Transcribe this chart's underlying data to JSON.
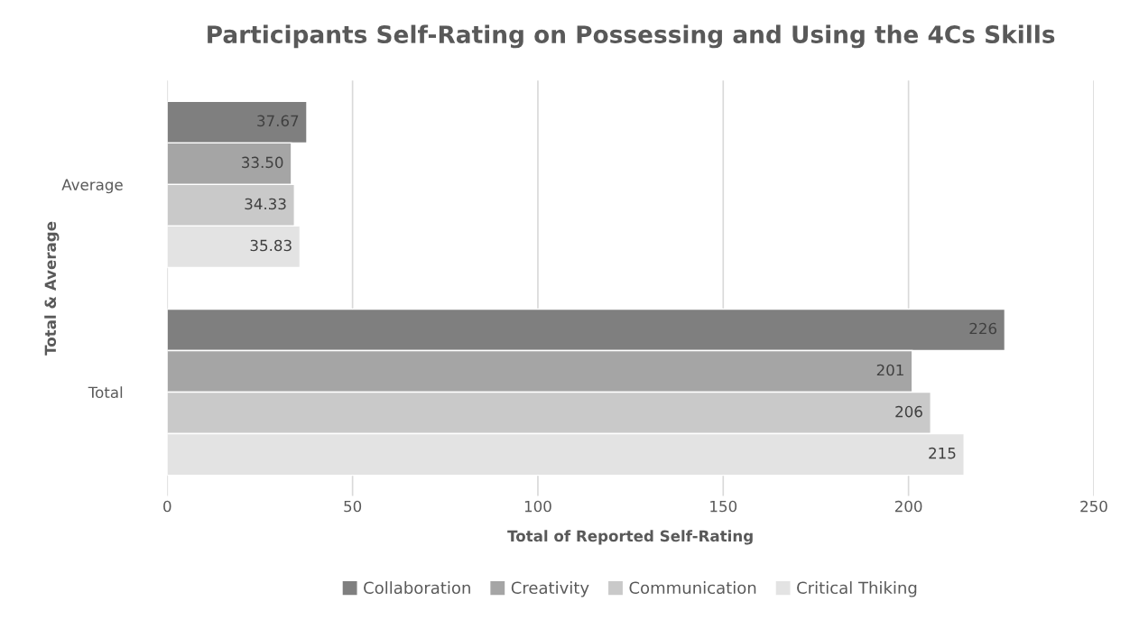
{
  "chart_data": {
    "type": "bar",
    "orientation": "horizontal",
    "title": "Participants Self-Rating on Possessing and Using the 4Cs Skills",
    "xlabel": "Total of Reported Self-Rating",
    "ylabel": "Total & Average",
    "categories": [
      "Average",
      "Total"
    ],
    "series": [
      {
        "name": "Collaboration",
        "color": "#7f7f7f",
        "values": [
          37.67,
          226
        ],
        "value_labels": [
          "37.67",
          "226"
        ]
      },
      {
        "name": "Creativity",
        "color": "#a5a5a5",
        "values": [
          33.5,
          201
        ],
        "value_labels": [
          "33.50",
          "201"
        ]
      },
      {
        "name": "Communication",
        "color": "#c9c9c9",
        "values": [
          34.33,
          206
        ],
        "value_labels": [
          "34.33",
          "206"
        ]
      },
      {
        "name": "Critical Thiking",
        "color": "#e3e3e3",
        "values": [
          35.83,
          215
        ],
        "value_labels": [
          "35.83",
          "215"
        ]
      }
    ],
    "xlim": [
      0,
      250
    ],
    "xticks": [
      0,
      50,
      100,
      150,
      200,
      250
    ],
    "grid": "x",
    "legend": "bottom"
  }
}
